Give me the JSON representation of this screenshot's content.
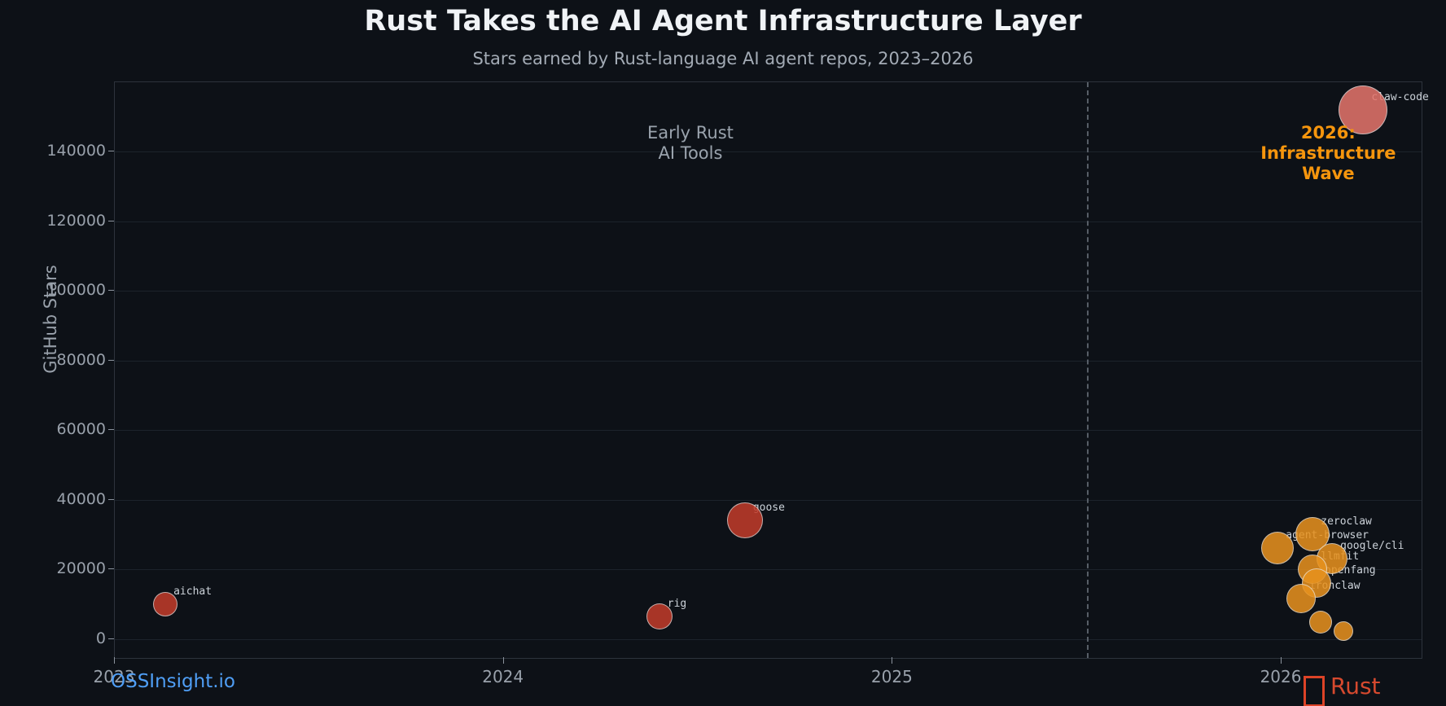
{
  "header": {
    "title": "Rust Takes the AI Agent Infrastructure Layer",
    "subtitle": "Stars earned by Rust-language AI agent repos, 2023–2026"
  },
  "chart_data": {
    "type": "scatter",
    "title": "Rust Takes the AI Agent Infrastructure Layer",
    "subtitle": "Stars earned by Rust-language AI agent repos, 2023–2026",
    "xlabel": "",
    "ylabel": "GitHub Stars",
    "xlim": [
      2023,
      2026.36
    ],
    "ylim": [
      -5500,
      160000
    ],
    "x_ticks": [
      2023,
      2024,
      2025,
      2026
    ],
    "y_ticks": [
      0,
      20000,
      40000,
      60000,
      80000,
      100000,
      120000,
      140000
    ],
    "grid": "horizontal",
    "legend": "none",
    "divider_x": 2025.5,
    "points": [
      {
        "name": "aichat",
        "x": 2023.13,
        "y": 10000,
        "r": 15,
        "color": "#c23b2a"
      },
      {
        "name": "rig",
        "x": 2024.4,
        "y": 6500,
        "r": 16,
        "color": "#c23b2a"
      },
      {
        "name": "goose",
        "x": 2024.62,
        "y": 34000,
        "r": 22,
        "color": "#c23b2a"
      },
      {
        "name": "agent-browser",
        "x": 2025.99,
        "y": 26000,
        "r": 20,
        "color": "#e8921e"
      },
      {
        "name": "zeroclaw",
        "x": 2026.08,
        "y": 30000,
        "r": 21,
        "color": "#e8921e"
      },
      {
        "name": "google/cli",
        "x": 2026.13,
        "y": 23000,
        "r": 19,
        "color": "#e8921e"
      },
      {
        "name": "llmfit",
        "x": 2026.08,
        "y": 20000,
        "r": 18,
        "color": "#e8921e"
      },
      {
        "name": "openfang",
        "x": 2026.09,
        "y": 16000,
        "r": 18,
        "color": "#e8921e"
      },
      {
        "name": "ironclaw",
        "x": 2026.05,
        "y": 11500,
        "r": 18,
        "color": "#e8921e"
      },
      {
        "name": "",
        "x": 2026.1,
        "y": 4700,
        "r": 14,
        "color": "#e8921e"
      },
      {
        "name": "",
        "x": 2026.16,
        "y": 2200,
        "r": 12,
        "color": "#e8921e"
      },
      {
        "name": "claw-code",
        "x": 2026.21,
        "y": 152000,
        "r": 30,
        "color": "#e5746b"
      }
    ],
    "annotations": [
      {
        "id": "early-rust",
        "text": "Early Rust\nAI Tools",
        "x": 2024.48,
        "y": 145000,
        "style": "gray"
      },
      {
        "id": "wave-2026",
        "text": "2026: Infrastructure\nWave",
        "x": 2026.12,
        "y": 145000,
        "style": "orange"
      }
    ],
    "colors": {
      "early_repo": "#c23b2a",
      "wave_repo": "#e8921e",
      "top_repo": "#e5746b",
      "annotation_orange": "#f5950d",
      "background": "#0d1117"
    }
  },
  "footer": {
    "source_label": "OSSInsight.io",
    "language_label": "Rust",
    "language_icon": "crab-emoji-missing-glyph"
  }
}
